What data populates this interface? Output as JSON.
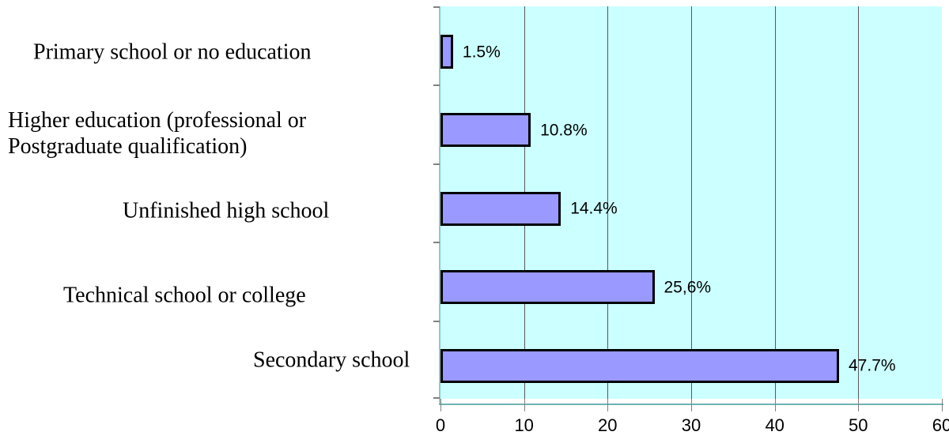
{
  "chart_data": {
    "type": "bar",
    "orientation": "horizontal",
    "title": "",
    "xlabel": "",
    "ylabel": "",
    "categories": [
      "Primary school or no education",
      "Higher education (professional or\nPostgraduate qualification)",
      "Unfinished high school",
      "Technical school or college",
      "Secondary school"
    ],
    "values": [
      1.5,
      10.8,
      14.4,
      25.6,
      47.7
    ],
    "value_labels": [
      "1.5%",
      "10.8%",
      "14.4%",
      "25,6%",
      "47.7%"
    ],
    "xlim": [
      0,
      60
    ],
    "x_ticks": [
      0,
      10,
      20,
      30,
      40,
      50,
      60
    ],
    "x_tick_labels": [
      "0",
      "10",
      "20",
      "30",
      "40",
      "50",
      "60"
    ],
    "grid": true,
    "grid_values": [
      10,
      20,
      30,
      40,
      50
    ],
    "legend": "none",
    "colors": {
      "bar_fill": "#9999FF",
      "bar_border": "#000000",
      "plot_background": "#CCFFFF",
      "gridline": "#595959",
      "x_axis_line": "#6fb3b3",
      "y_axis_line": "#8fc7c7",
      "tick": "#808080",
      "text": "#000000"
    }
  }
}
